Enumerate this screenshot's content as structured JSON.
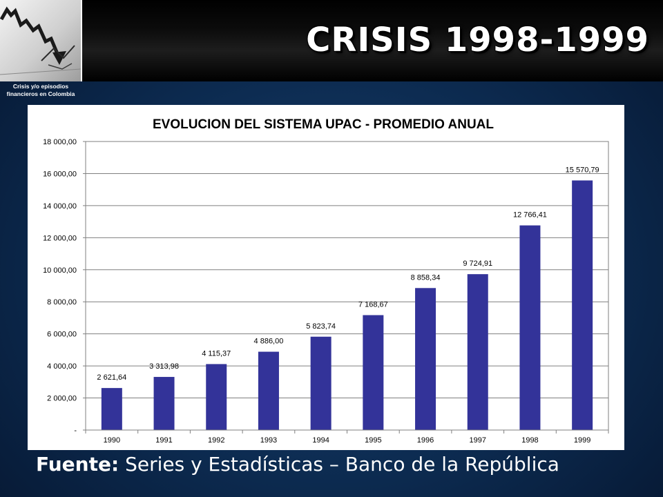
{
  "slide": {
    "title": "CRISIS 1998-1999",
    "logo_caption_line1": "Crisis y/o episodios",
    "logo_caption_line2": "financieros en Colombia",
    "source_label": "Fuente:",
    "source_text": "Series y Estadísticas – Banco de la República"
  },
  "colors": {
    "bar": "#333399",
    "title_bar": "#000000",
    "background": "#0c2a4f"
  },
  "chart_data": {
    "type": "bar",
    "title": "EVOLUCION DEL SISTEMA UPAC - PROMEDIO ANUAL",
    "categories": [
      "1990",
      "1991",
      "1992",
      "1993",
      "1994",
      "1995",
      "1996",
      "1997",
      "1998",
      "1999"
    ],
    "values": [
      2621.64,
      3313.98,
      4115.37,
      4886.0,
      5823.74,
      7168.67,
      8858.34,
      9724.91,
      12766.41,
      15570.79
    ],
    "value_labels": [
      "2 621,64",
      "3 313,98",
      "4 115,37",
      "4 886,00",
      "5 823,74",
      "7 168,67",
      "8 858,34",
      "9 724,91",
      "12 766,41",
      "15 570,79"
    ],
    "y_ticks": [
      0,
      2000,
      4000,
      6000,
      8000,
      10000,
      12000,
      14000,
      16000,
      18000
    ],
    "y_tick_labels": [
      "-",
      "2 000,00",
      "4 000,00",
      "6 000,00",
      "8 000,00",
      "10 000,00",
      "12 000,00",
      "14 000,00",
      "16 000,00",
      "18 000,00"
    ],
    "ylim": [
      0,
      18000
    ],
    "grid": true,
    "legend": "none"
  }
}
